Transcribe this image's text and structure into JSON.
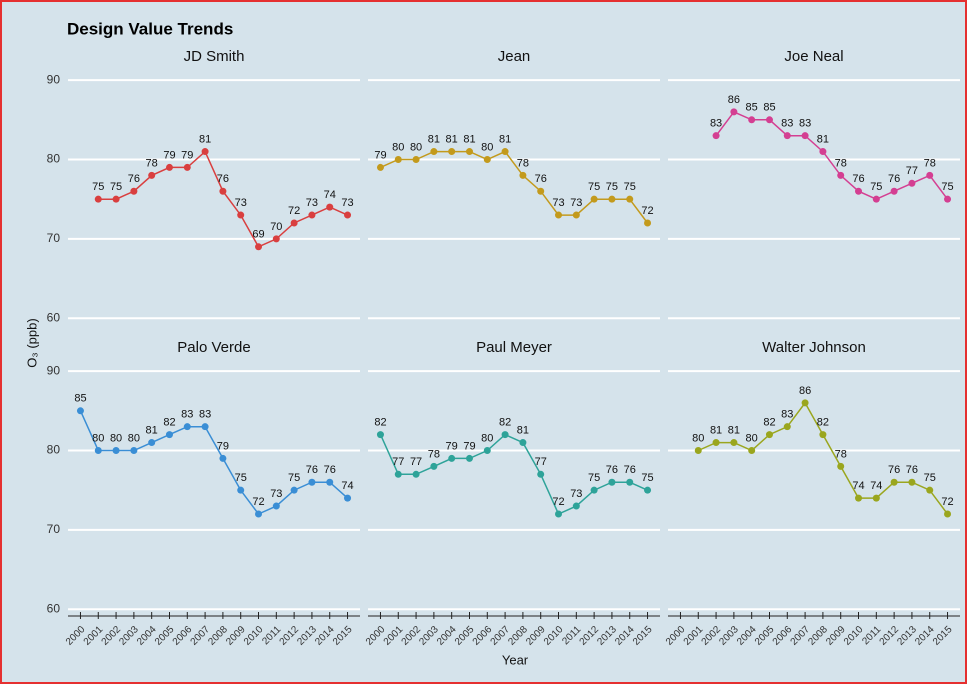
{
  "chart_data": {
    "type": "line",
    "title": "Design Value Trends",
    "xlabel": "Year",
    "ylabel": "O₃ (ppb)",
    "x": [
      2000,
      2001,
      2002,
      2003,
      2004,
      2005,
      2006,
      2007,
      2008,
      2009,
      2010,
      2011,
      2012,
      2013,
      2014,
      2015
    ],
    "xlim": [
      1999.3,
      2015.7
    ],
    "xticks": [
      2000,
      2001,
      2002,
      2003,
      2004,
      2005,
      2006,
      2007,
      2008,
      2009,
      2010,
      2011,
      2012,
      2013,
      2014,
      2015
    ],
    "ylim": [
      59.4,
      91.4
    ],
    "yticks": [
      60,
      70,
      80,
      90
    ],
    "grid": true,
    "series": [
      {
        "name": "JD Smith",
        "color": "#d93f3f",
        "values": [
          null,
          75,
          75,
          76,
          78,
          79,
          79,
          81,
          76,
          73,
          69,
          70,
          72,
          73,
          74,
          73
        ]
      },
      {
        "name": "Jean",
        "color": "#c39a1c",
        "values": [
          79,
          80,
          80,
          81,
          81,
          81,
          80,
          81,
          78,
          76,
          73,
          73,
          75,
          75,
          75,
          72
        ]
      },
      {
        "name": "Joe Neal",
        "color": "#d43f92",
        "values": [
          null,
          null,
          83,
          86,
          85,
          85,
          83,
          83,
          81,
          78,
          76,
          75,
          76,
          77,
          78,
          75
        ]
      },
      {
        "name": "Palo Verde",
        "color": "#3a8ed5",
        "values": [
          85,
          80,
          80,
          80,
          81,
          82,
          83,
          83,
          79,
          75,
          72,
          73,
          75,
          76,
          76,
          74
        ]
      },
      {
        "name": "Paul Meyer",
        "color": "#2ea399",
        "values": [
          82,
          77,
          77,
          78,
          79,
          79,
          80,
          82,
          81,
          77,
          72,
          73,
          75,
          76,
          76,
          75
        ]
      },
      {
        "name": "Walter Johnson",
        "color": "#9aa61e",
        "values": [
          null,
          80,
          81,
          81,
          80,
          82,
          83,
          86,
          82,
          78,
          74,
          74,
          76,
          76,
          75,
          72
        ]
      }
    ]
  }
}
